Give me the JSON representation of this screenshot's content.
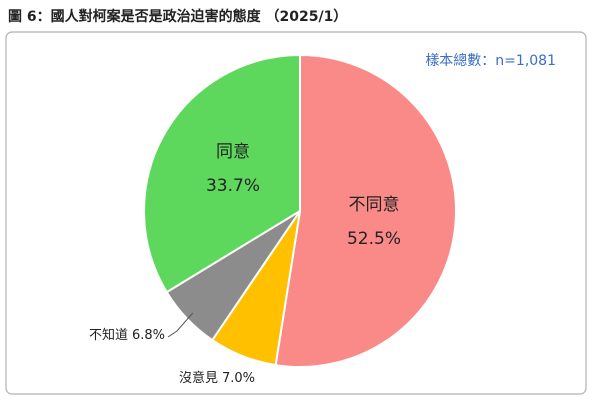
{
  "chart_data": {
    "type": "pie",
    "title": "圖 6：國人對柯案是否是政治迫害的態度 （2025/1）",
    "annotation": "樣本總數：n=1,081",
    "categories": [
      "不同意",
      "沒意見",
      "不知道",
      "同意"
    ],
    "values": [
      52.5,
      7.0,
      6.8,
      33.7
    ],
    "value_labels": [
      "52.5%",
      "7.0%",
      "6.8%",
      "33.7%"
    ],
    "colors": [
      "#fa8a88",
      "#ffc000",
      "#8c8c8c",
      "#5dd85d"
    ]
  }
}
